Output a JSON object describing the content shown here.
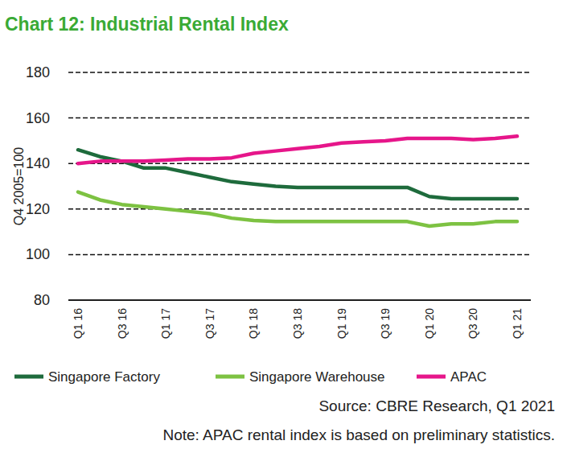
{
  "chart_data": {
    "type": "line",
    "title": "Chart 12: Industrial Rental Index",
    "y_label": "Q4 2005=100",
    "categories": [
      "Q1 16",
      null,
      "Q3 16",
      null,
      "Q1 17",
      null,
      "Q3 17",
      null,
      "Q1 18",
      null,
      "Q3 18",
      null,
      "Q1 19",
      null,
      "Q3 19",
      null,
      "Q1 20",
      null,
      "Q3 20",
      null,
      "Q1 21"
    ],
    "series": [
      {
        "name": "Singapore Factory",
        "color": "#1e6b3c",
        "values": [
          146,
          143,
          141,
          138,
          138,
          136,
          134,
          132,
          131,
          130,
          129.5,
          129.5,
          129.5,
          129.5,
          129.5,
          129.5,
          125.5,
          124.5,
          124.5,
          124.5,
          124.5
        ]
      },
      {
        "name": "Singapore Warehouse",
        "color": "#7dc242",
        "values": [
          127.5,
          124,
          122,
          121,
          120,
          119,
          118,
          116,
          115,
          114.5,
          114.5,
          114.5,
          114.5,
          114.5,
          114.5,
          114.5,
          112.5,
          113.5,
          113.5,
          114.5,
          114.5
        ]
      },
      {
        "name": "APAC",
        "color": "#e6168a",
        "values": [
          140,
          141,
          141,
          141,
          141.5,
          142,
          142,
          142.5,
          144.5,
          145.5,
          146.5,
          147.5,
          149,
          149.5,
          150,
          151,
          151,
          151,
          150.5,
          151,
          152
        ]
      }
    ],
    "ylim": [
      80,
      180
    ],
    "yticks": [
      80,
      100,
      120,
      140,
      160,
      180
    ],
    "grid": true,
    "legend": "bottom",
    "annotations": [
      "Source: CBRE Research, Q1 2021",
      "Note: APAC rental index is based on preliminary statistics."
    ]
  }
}
